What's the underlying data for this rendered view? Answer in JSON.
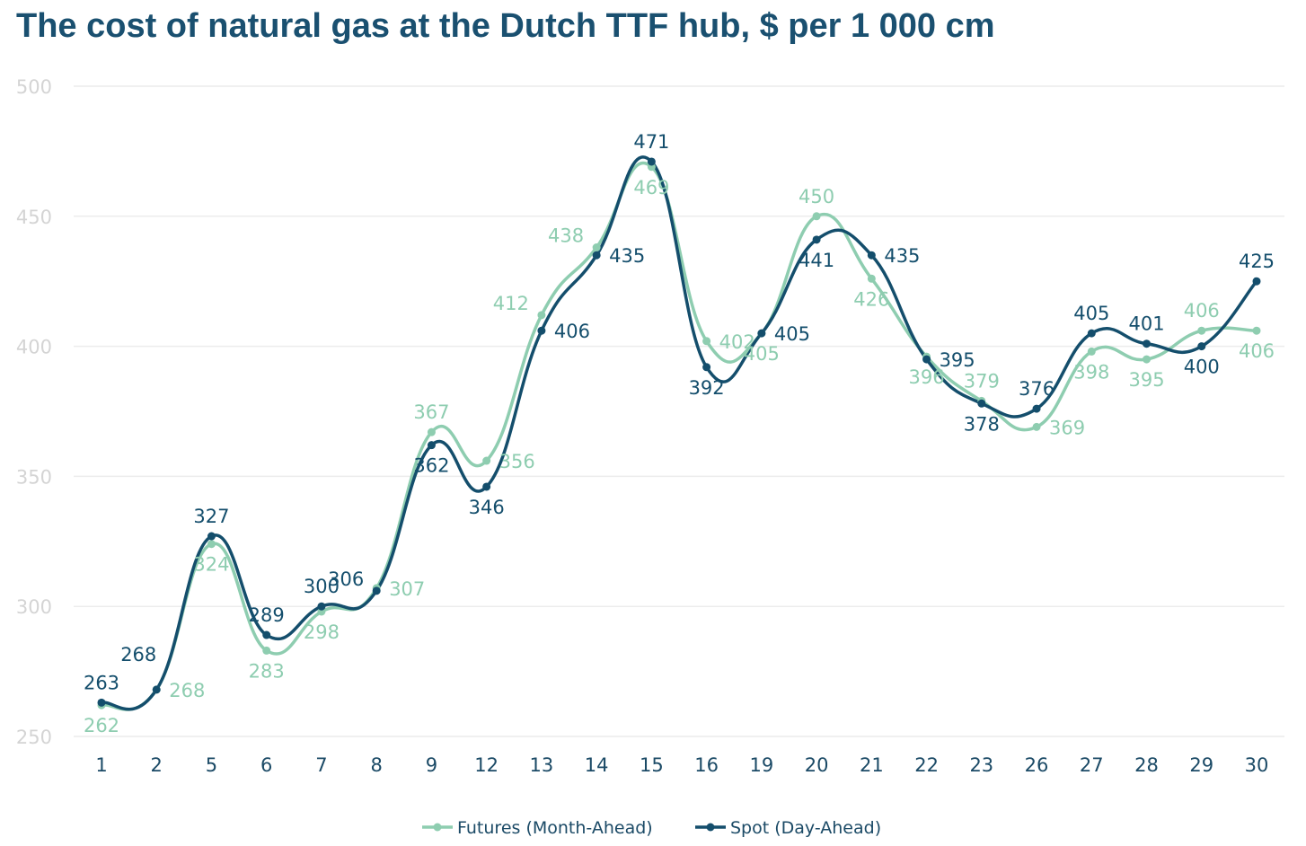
{
  "title": "The cost of natural gas at the Dutch TTF hub, $ per 1 000 cm",
  "chart_data": {
    "type": "line",
    "title": "The cost of natural gas at the Dutch TTF hub, $ per 1 000 cm",
    "xlabel": "",
    "ylabel": "",
    "ylim": [
      250,
      500
    ],
    "yticks": [
      250,
      300,
      350,
      400,
      450,
      500
    ],
    "categories": [
      "1",
      "2",
      "5",
      "6",
      "7",
      "8",
      "9",
      "12",
      "13",
      "14",
      "15",
      "16",
      "19",
      "20",
      "21",
      "22",
      "23",
      "26",
      "27",
      "28",
      "29",
      "30"
    ],
    "grid": true,
    "smooth": true,
    "legend_position": "bottom-center",
    "series": [
      {
        "name": "Futures (Month-Ahead)",
        "color": "#8ecdb0",
        "values": [
          262,
          268,
          324,
          283,
          298,
          307,
          367,
          356,
          412,
          438,
          469,
          402,
          405,
          450,
          426,
          396,
          379,
          369,
          398,
          395,
          406,
          406
        ],
        "label_pos": [
          "below",
          "right",
          "below",
          "below",
          "below",
          "right",
          "above",
          "right",
          "left",
          "left",
          "below",
          "right",
          "below",
          "above",
          "below",
          "below",
          "above",
          "right",
          "below",
          "below",
          "above",
          "below"
        ]
      },
      {
        "name": "Spot (Day-Ahead)",
        "color": "#144e6c",
        "values": [
          263,
          268,
          327,
          289,
          300,
          306,
          362,
          346,
          406,
          435,
          471,
          392,
          405,
          441,
          435,
          395,
          378,
          376,
          405,
          401,
          400,
          425
        ],
        "label_pos": [
          "above",
          "left-up",
          "above",
          "above",
          "above",
          "left",
          "below",
          "below",
          "right",
          "right",
          "above",
          "below",
          "right",
          "below",
          "right",
          "right",
          "below",
          "above",
          "above",
          "above",
          "below",
          "above"
        ]
      }
    ]
  }
}
